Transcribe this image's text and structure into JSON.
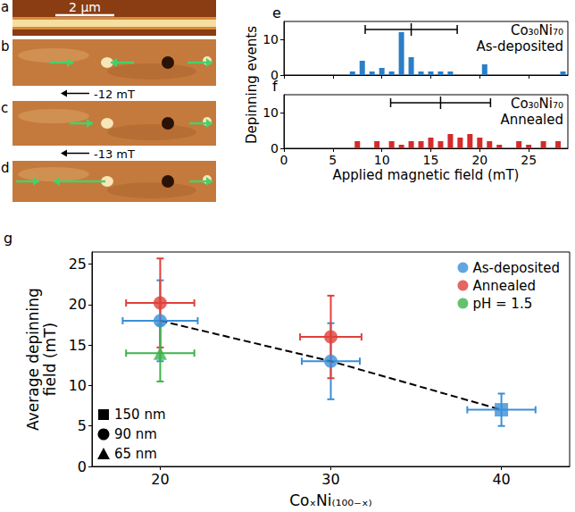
{
  "image_panels": {
    "panels": [
      {
        "letter": "a",
        "scale_bar": "2 µm"
      },
      {
        "letter": "b"
      },
      {
        "letter": "c"
      },
      {
        "letter": "d"
      }
    ],
    "fields": [
      "-12 mT",
      "-13 mT"
    ]
  },
  "chart_data": [
    {
      "panel": "e",
      "type": "bar",
      "annotation": [
        "Co₃₀Ni₇₀",
        "As-deposited"
      ],
      "ylabel": "Depinning events",
      "x": [
        7,
        8,
        9,
        10,
        11,
        12,
        13,
        14,
        15,
        16,
        17,
        20.5,
        28.5
      ],
      "values": [
        1,
        4,
        1,
        2,
        1,
        12,
        5,
        1,
        1,
        1,
        1,
        3,
        1
      ],
      "color": "#2a7fc6",
      "mean": 13,
      "error": 4.7,
      "xlim": [
        0,
        29
      ],
      "xticks": [
        0,
        5,
        10,
        15,
        20,
        25
      ],
      "ylim": [
        0,
        15
      ],
      "yticks": [
        0,
        10
      ],
      "tick_labels": "y",
      "grid": false
    },
    {
      "panel": "f",
      "type": "bar",
      "annotation": [
        "Co₃₀Ni₇₀",
        "Annealed"
      ],
      "xlabel": "Applied magnetic field (mT)",
      "x": [
        7.5,
        9.5,
        11,
        12,
        13,
        14,
        15,
        16,
        17,
        18,
        19,
        20,
        21,
        22,
        24,
        25,
        26.5,
        28
      ],
      "values": [
        2,
        2,
        2,
        1,
        2,
        2,
        3,
        2,
        4,
        3,
        4,
        3,
        2,
        1,
        2,
        1,
        2,
        2
      ],
      "color": "#d42a2a",
      "mean": 16,
      "error": 5.1,
      "xlim": [
        0,
        29
      ],
      "xticks": [
        0,
        5,
        10,
        15,
        20,
        25
      ],
      "ylim": [
        0,
        15
      ],
      "yticks": [
        0,
        10
      ],
      "grid": false
    },
    {
      "panel": "g",
      "type": "scatter",
      "xlabel": "CoₓNi₍₁₀₀₋ₓ₎",
      "ylabel": "Average depinning field (mT)",
      "xlim": [
        16,
        44
      ],
      "xticks": [
        20,
        30,
        40
      ],
      "ylim": [
        0,
        26.5
      ],
      "yticks": [
        0,
        5,
        10,
        15,
        20,
        25
      ],
      "legend": "top-right",
      "grid": false,
      "series": [
        {
          "name": "As-deposited",
          "color": "#3b8ed8",
          "x": [
            20,
            30,
            40
          ],
          "values": [
            18,
            13,
            7
          ],
          "xerr": [
            2.2,
            1.7,
            2
          ],
          "yerr": [
            5,
            4.7,
            2
          ],
          "markers": [
            "circle",
            "circle",
            "square"
          ]
        },
        {
          "name": "Annealed",
          "color": "#e0403a",
          "x": [
            20,
            30
          ],
          "values": [
            20.2,
            16
          ],
          "xerr": [
            2,
            1.8
          ],
          "yerr": [
            5.5,
            5.1
          ],
          "markers": [
            "circle",
            "circle"
          ]
        },
        {
          "name": "pH = 1.5",
          "color": "#3db34a",
          "x": [
            20
          ],
          "values": [
            14
          ],
          "xerr": [
            2
          ],
          "yerr": [
            3.5
          ],
          "markers": [
            "triangle"
          ]
        }
      ],
      "trend": {
        "series": "As-deposited",
        "line_style": "dashed",
        "color": "#000000"
      },
      "marker_legend": [
        {
          "label": "150 nm",
          "marker": "square"
        },
        {
          "label": "90 nm",
          "marker": "circle"
        },
        {
          "label": "65 nm",
          "marker": "triangle"
        }
      ]
    }
  ]
}
